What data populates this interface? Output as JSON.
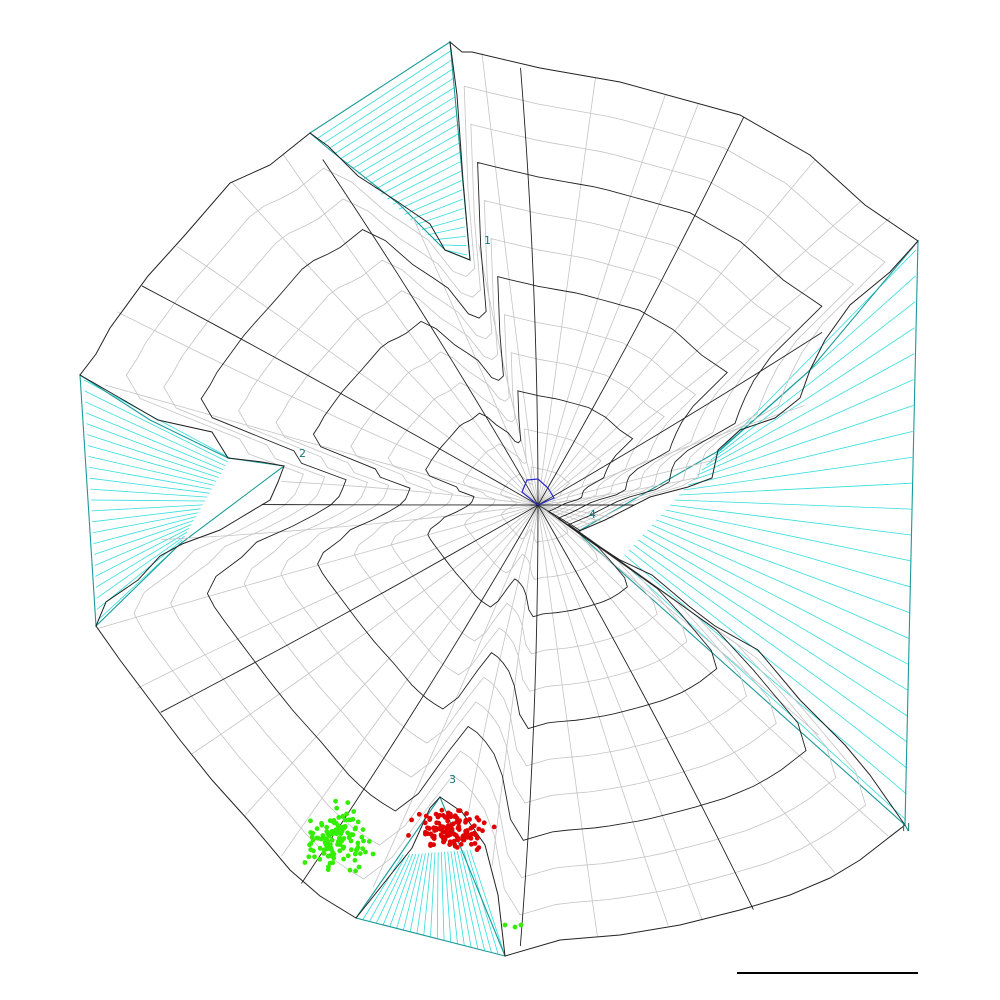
{
  "colors": {
    "background": "#ffffff",
    "major_grid": "#222222",
    "minor_grid": "#c4c4c4",
    "flap_outline": "#1a9a9a",
    "flap_fill_lines": "#33dddd",
    "center_marker": "#2b2bcc",
    "points_group_a": "#e00000",
    "points_group_b": "#33ee00",
    "scale_bar": "#000000",
    "label_text": "#117777"
  },
  "cut_labels": [
    "1",
    "2",
    "3",
    "4"
  ],
  "corner_label": "N"
}
